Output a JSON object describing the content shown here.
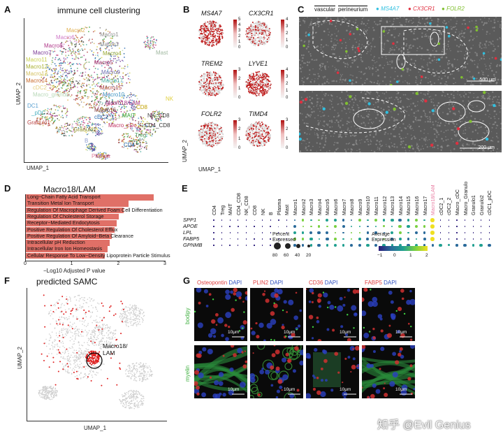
{
  "panels": {
    "A": {
      "letter": "A",
      "title": "immune cell clustering",
      "xlabel": "UMAP_1",
      "ylabel": "UMAP_2",
      "clusters": [
        {
          "name": "Macro2",
          "color": "#e0b050"
        },
        {
          "name": "Macro6",
          "color": "#d07ac8"
        },
        {
          "name": "Macro8",
          "color": "#b03a8a"
        },
        {
          "name": "Macro7",
          "color": "#7a3a96"
        },
        {
          "name": "Macro11",
          "color": "#c8d050"
        },
        {
          "name": "Macro12",
          "color": "#a8b030"
        },
        {
          "name": "Macro13",
          "color": "#d4c060"
        },
        {
          "name": "Macro14",
          "color": "#c86a2a"
        },
        {
          "name": "cDC2_2",
          "color": "#e6d080"
        },
        {
          "name": "Macro_granulo",
          "color": "#b8d8b8"
        },
        {
          "name": "DC1",
          "color": "#5aa0d0"
        },
        {
          "name": "_pDC",
          "color": "#4ab0c0"
        },
        {
          "name": "Granulo1",
          "color": "#b84040"
        },
        {
          "name": "Granulo2",
          "color": "#8a8a20"
        },
        {
          "name": "Macro_cDc",
          "color": "#c03060"
        },
        {
          "name": "cDC2_1",
          "color": "#2a6ab0"
        },
        {
          "name": "Macro16",
          "color": "#804040"
        },
        {
          "name": "Macro18/LAM",
          "color": "#a03080"
        },
        {
          "name": "Macro15",
          "color": "#b04040"
        },
        {
          "name": "Macro17",
          "color": "#50b0a0"
        },
        {
          "name": "Macro10",
          "color": "#3a90c0"
        },
        {
          "name": "Macro9",
          "color": "#7070b0"
        },
        {
          "name": "Macro5",
          "color": "#902060"
        },
        {
          "name": "Macro4",
          "color": "#9aaa30"
        },
        {
          "name": "Macro3",
          "color": "#8a8a8a"
        },
        {
          "name": "Macro1",
          "color": "#909090"
        },
        {
          "name": "Mast",
          "color": "#a0b8a0"
        },
        {
          "name": "NK",
          "color": "#e0d040"
        },
        {
          "name": "CD8",
          "color": "#c0a000"
        },
        {
          "name": "NK_CD8",
          "color": "#404040"
        },
        {
          "name": "MAIT",
          "color": "#30a030"
        },
        {
          "name": "CD4_CD8",
          "color": "#303030"
        },
        {
          "name": "Treg",
          "color": "#50a060"
        },
        {
          "name": "CD4",
          "color": "#2060a0"
        },
        {
          "name": "B",
          "color": "#90a0d0"
        },
        {
          "name": "Plasma",
          "color": "#e080a0"
        }
      ]
    },
    "B": {
      "letter": "B",
      "xlabel": "UMAP_1",
      "ylabel": "UMAP_2",
      "genes": [
        {
          "name": "MS4A7",
          "scale": [
            "5",
            "4",
            "3",
            "2",
            "1",
            "0"
          ]
        },
        {
          "name": "CX3CR1",
          "scale": [
            "4",
            "3",
            "2",
            "1",
            "0"
          ]
        },
        {
          "name": "TREM2",
          "scale": [
            "3",
            "2",
            "1",
            "0"
          ]
        },
        {
          "name": "LYVE1",
          "scale": [
            "4",
            "3",
            "2",
            "1",
            "0"
          ]
        },
        {
          "name": "FOLR2",
          "scale": [
            "3",
            "2",
            "1",
            "0"
          ]
        },
        {
          "name": "TIMD4",
          "scale": [
            "3",
            "2",
            "1",
            "0"
          ]
        }
      ]
    },
    "C": {
      "letter": "C",
      "legend": [
        "vascular",
        "perineurium",
        "MS4A7",
        "CX3CR1",
        "FOLR2"
      ],
      "legend_colors": [
        "#ffffff",
        "#ffffff",
        "#30c0e0",
        "#e03040",
        "#80c030"
      ],
      "scale_top": "500 μm",
      "scale_bottom": "200 μm"
    },
    "D": {
      "letter": "D",
      "title": "Macro18/LAM",
      "xlabel": "−Log10 Adjusted P value",
      "ticks": [
        "0",
        "1",
        "2",
        "3"
      ],
      "terms": [
        {
          "label": "Long−Chain Fatty Acid Transport",
          "value": 2.75
        },
        {
          "label": "Transition Metal Ion Transport",
          "value": 2.2
        },
        {
          "label": "Regulation Of Macrophage Derived Foam Cell Differentiation",
          "value": 2.1
        },
        {
          "label": "Regulation Of Cholesterol Storage",
          "value": 2.0
        },
        {
          "label": "Receptor−Mediated Endocytosis",
          "value": 1.95
        },
        {
          "label": "Positive Regulation Of Cholesterol Efflux",
          "value": 1.9
        },
        {
          "label": "Positive Regulation Of Amyloid−Beta Clearance",
          "value": 1.85
        },
        {
          "label": "Intracellular pH Reduction",
          "value": 1.8
        },
        {
          "label": "Intracellular Iron Ion Homeostasis",
          "value": 1.75
        },
        {
          "label": "Cellular Response To Low−Density Lipoprotein Particle Stimulus",
          "value": 1.7
        }
      ]
    },
    "E": {
      "letter": "E",
      "columns": [
        "CD4",
        "Treg",
        "MAIT",
        "CD4_CD8",
        "NK_CD8",
        "CD8",
        "NK",
        "B",
        "Plasma",
        "Mast",
        "Macro1",
        "Macro2",
        "Macro3",
        "Macro4",
        "Macro5",
        "Macro6",
        "Macro7",
        "Macro8",
        "Macro9",
        "Macro10",
        "Macro11",
        "Macro12",
        "Macro13",
        "Macro14",
        "Macro15",
        "Macro16",
        "Macro17",
        "Macro18/LAM",
        "cDC2_1",
        "cDC2_2",
        "Macro_cDC",
        "Macro_Granulo",
        "Granulo1",
        "Granulo2",
        "cDC1_pDC"
      ],
      "rows": [
        "SPP1",
        "APOE",
        "LPL",
        "FABP5",
        "GPNMB"
      ],
      "pct_title": "Percent\nExpressed",
      "pct_levels": [
        "80",
        "60",
        "40",
        "20"
      ],
      "avg_title": "Average\nExpression",
      "avg_ticks": [
        "−1",
        "0",
        "1",
        "2"
      ]
    },
    "F": {
      "letter": "F",
      "title": "predicted SAMC",
      "xlabel": "UMAP_1",
      "ylabel": "UMAP_2",
      "annot": "Macro18/\nLAM"
    },
    "G": {
      "letter": "G",
      "top_labels": [
        {
          "a": "Osteopontin",
          "b": "DAPI",
          "ca": "#e04040"
        },
        {
          "a": "PLIN2",
          "b": "DAPI",
          "ca": "#e04040"
        },
        {
          "a": "CD36",
          "b": "DAPI",
          "ca": "#e04040"
        },
        {
          "a": "FABP5",
          "b": "DAPI",
          "ca": "#e04040"
        }
      ],
      "row_labels": [
        "bodipy",
        "myelin"
      ],
      "scale": "10μm"
    }
  },
  "watermark": "知乎 @Evil Genius"
}
